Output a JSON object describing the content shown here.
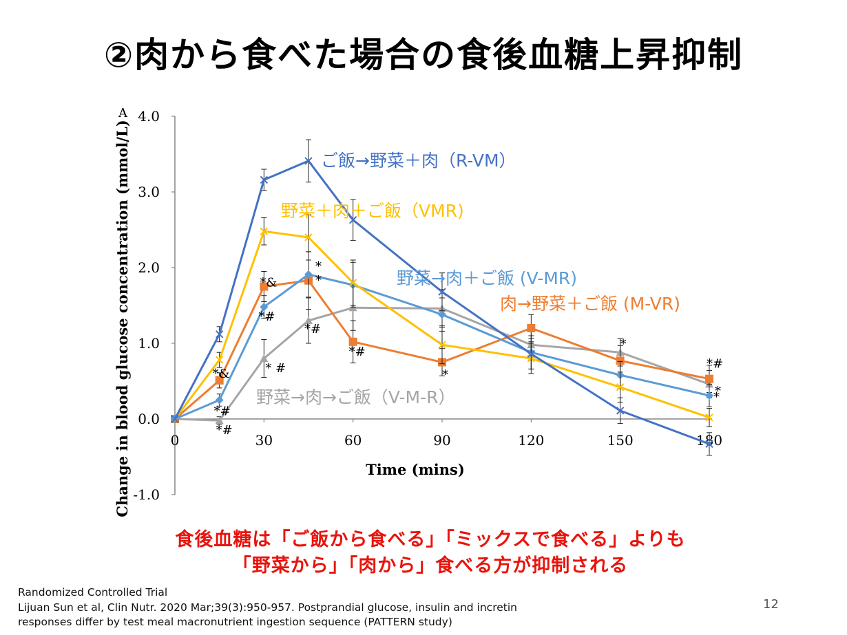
{
  "slide": {
    "title": "②肉から食べた場合の食後血糖上昇抑制",
    "conclusion_line1": "食後血糖は「ご飯から食べる」「ミックスで食べる」よりも",
    "conclusion_line2": "「野菜から」「肉から」食べる方が抑制される",
    "citation_line1": "Randomized Controlled Trial",
    "citation_line2": "Lijuan Sun et al, Clin Nutr. 2020 Mar;39(3):950-957. Postprandial glucose, insulin and incretin",
    "citation_line3": "responses differ by test meal macronutrient ingestion sequence (PATTERN study)",
    "page_number": "12"
  },
  "chart_data": {
    "type": "line",
    "panel_label": "A",
    "xlabel": "Time (mins)",
    "ylabel": "Change in blood glucose concentration (mmol/L)",
    "x": [
      0,
      15,
      30,
      45,
      60,
      90,
      120,
      150,
      180
    ],
    "x_ticks": [
      "0",
      "30",
      "60",
      "90",
      "120",
      "150",
      "180"
    ],
    "y_ticks": [
      "-1.0",
      "0.0",
      "1.0",
      "2.0",
      "3.0",
      "4.0"
    ],
    "xlim": [
      0,
      180
    ],
    "ylim": [
      -1.0,
      4.0
    ],
    "grid": false,
    "legend": "inline labels",
    "series": [
      {
        "name": "ご飯→野菜＋肉（R-VM）",
        "color": "#4472c4",
        "marker": "x",
        "values": [
          0.0,
          1.12,
          3.16,
          3.41,
          2.63,
          1.68,
          0.86,
          0.11,
          -0.33
        ],
        "errors": [
          0.0,
          0.1,
          0.14,
          0.28,
          0.27,
          0.25,
          0.2,
          0.17,
          0.15
        ]
      },
      {
        "name": "野菜＋肉＋ご飯（VMR)",
        "color": "#ffc000",
        "marker": "x",
        "values": [
          0.0,
          0.78,
          2.48,
          2.4,
          1.8,
          0.98,
          0.8,
          0.42,
          0.02
        ],
        "errors": [
          0.0,
          0.1,
          0.18,
          0.3,
          0.3,
          0.25,
          0.2,
          0.2,
          0.12
        ]
      },
      {
        "name": "野菜→肉＋ご飯 (V-MR)",
        "color": "#5b9bd5",
        "marker": "diamond",
        "values": [
          0.0,
          0.25,
          1.48,
          1.91,
          1.77,
          1.38,
          0.88,
          0.58,
          0.31
        ],
        "errors": [
          0.0,
          0.08,
          0.15,
          0.3,
          0.3,
          0.22,
          0.22,
          0.18,
          0.15
        ]
      },
      {
        "name": "肉→野菜＋ご飯 (M-VR)",
        "color": "#ed7d31",
        "marker": "square",
        "values": [
          0.0,
          0.51,
          1.75,
          1.83,
          1.02,
          0.75,
          1.2,
          0.77,
          0.53
        ],
        "errors": [
          0.0,
          0.1,
          0.2,
          0.38,
          0.28,
          0.18,
          0.18,
          0.2,
          0.18
        ]
      },
      {
        "name": "野菜→肉→ご飯（V-M-R）",
        "color": "#a5a5a5",
        "marker": "triangle",
        "values": [
          0.0,
          -0.02,
          0.8,
          1.3,
          1.47,
          1.46,
          0.98,
          0.88,
          0.46
        ],
        "errors": [
          0.0,
          0.05,
          0.25,
          0.3,
          0.3,
          0.25,
          0.2,
          0.18,
          0.18
        ]
      }
    ],
    "annotations": [
      {
        "text": "*&",
        "x": 15,
        "y": 0.51
      },
      {
        "text": "*#",
        "x": 15,
        "y": 0.25
      },
      {
        "text": "*#",
        "x": 15,
        "y": -0.02
      },
      {
        "text": "*&",
        "x": 30,
        "y": 1.75
      },
      {
        "text": "*#",
        "x": 30,
        "y": 1.48
      },
      {
        "text": "* #",
        "x": 30,
        "y": 0.8
      },
      {
        "text": "*",
        "x": 45,
        "y": 1.91
      },
      {
        "text": "*",
        "x": 45,
        "y": 1.83
      },
      {
        "text": "*#",
        "x": 45,
        "y": 1.3
      },
      {
        "text": "*#",
        "x": 60,
        "y": 1.02
      },
      {
        "text": "*",
        "x": 90,
        "y": 0.75
      },
      {
        "text": "*",
        "x": 150,
        "y": 0.88
      },
      {
        "text": "*#",
        "x": 180,
        "y": 0.53
      },
      {
        "text": "*",
        "x": 180,
        "y": 0.31
      },
      {
        "text": "*",
        "x": 180,
        "y": 0.46
      }
    ]
  }
}
